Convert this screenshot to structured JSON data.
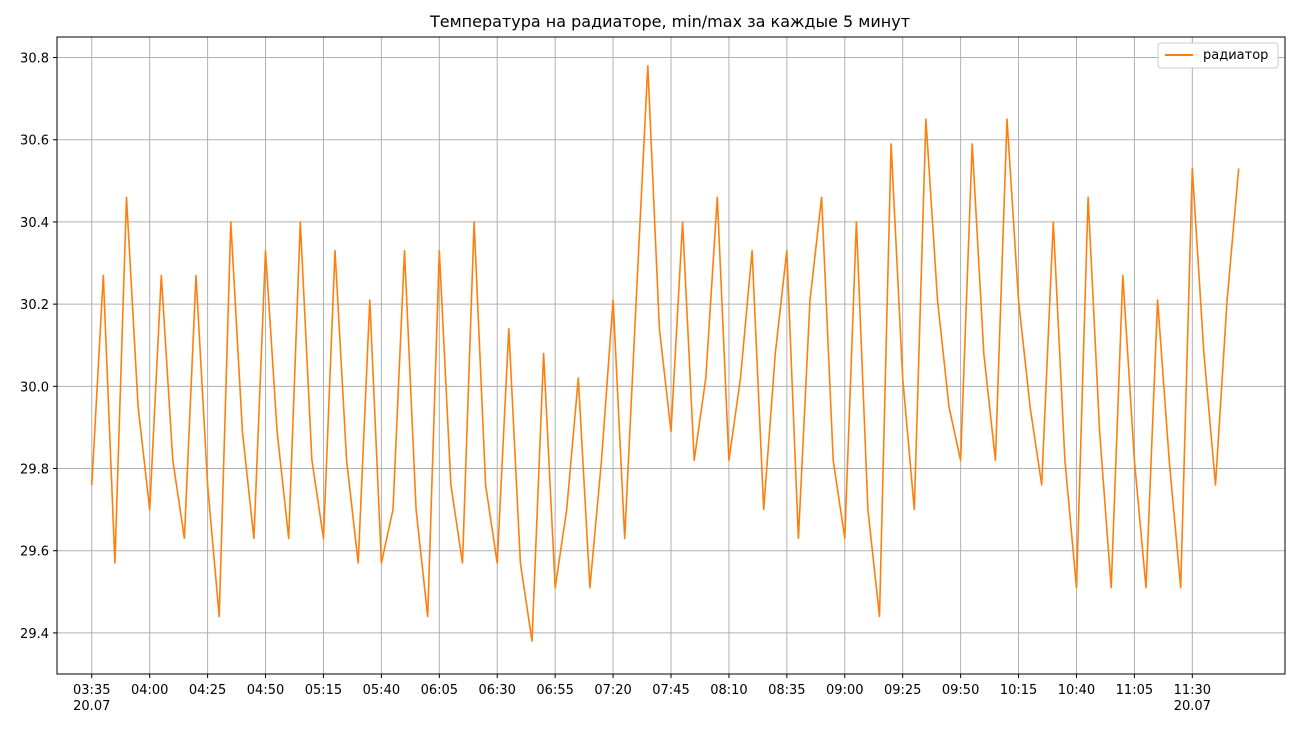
{
  "chart_data": {
    "type": "line",
    "title": "Температура на радиаторе, min/max за каждые 5 минут",
    "xlabel": "",
    "ylabel": "",
    "ylim": [
      29.3,
      30.85
    ],
    "grid": true,
    "legend_position": "top-right",
    "y_ticks": [
      29.4,
      29.6,
      29.8,
      30.0,
      30.2,
      30.4,
      30.6,
      30.8
    ],
    "y_tick_labels": [
      "29.4",
      "29.6",
      "29.8",
      "30.0",
      "30.2",
      "30.4",
      "30.6",
      "30.8"
    ],
    "x_ticks": [
      "03:35",
      "04:00",
      "04:25",
      "04:50",
      "05:15",
      "05:40",
      "06:05",
      "06:30",
      "06:55",
      "07:20",
      "07:45",
      "08:10",
      "08:35",
      "09:00",
      "09:25",
      "09:50",
      "10:15",
      "10:40",
      "11:05",
      "11:30"
    ],
    "x_tick_labels": [
      [
        "03:35",
        "20.07"
      ],
      [
        "04:00"
      ],
      [
        "04:25"
      ],
      [
        "04:50"
      ],
      [
        "05:15"
      ],
      [
        "05:40"
      ],
      [
        "06:05"
      ],
      [
        "06:30"
      ],
      [
        "06:55"
      ],
      [
        "07:20"
      ],
      [
        "07:45"
      ],
      [
        "08:10"
      ],
      [
        "08:35"
      ],
      [
        "09:00"
      ],
      [
        "09:25"
      ],
      [
        "09:50"
      ],
      [
        "10:15"
      ],
      [
        "10:40"
      ],
      [
        "11:05"
      ],
      [
        "11:30",
        "20.07"
      ]
    ],
    "x_range": [
      "03:20",
      "12:10"
    ],
    "series": [
      {
        "name": "радиатор",
        "color": "#ff7f0e",
        "x": [
          "03:35",
          "03:40",
          "03:45",
          "03:50",
          "03:55",
          "04:00",
          "04:05",
          "04:10",
          "04:15",
          "04:20",
          "04:25",
          "04:30",
          "04:35",
          "04:40",
          "04:45",
          "04:50",
          "04:55",
          "05:00",
          "05:05",
          "05:10",
          "05:15",
          "05:20",
          "05:25",
          "05:30",
          "05:35",
          "05:40",
          "05:45",
          "05:50",
          "05:55",
          "06:00",
          "06:05",
          "06:10",
          "06:15",
          "06:20",
          "06:25",
          "06:30",
          "06:35",
          "06:40",
          "06:45",
          "06:50",
          "06:55",
          "07:00",
          "07:05",
          "07:10",
          "07:15",
          "07:20",
          "07:25",
          "07:30",
          "07:35",
          "07:40",
          "07:45",
          "07:50",
          "07:55",
          "08:00",
          "08:05",
          "08:10",
          "08:15",
          "08:20",
          "08:25",
          "08:30",
          "08:35",
          "08:40",
          "08:45",
          "08:50",
          "08:55",
          "09:00",
          "09:05",
          "09:10",
          "09:15",
          "09:20",
          "09:25",
          "09:30",
          "09:35",
          "09:40",
          "09:45",
          "09:50",
          "09:55",
          "10:00",
          "10:05",
          "10:10",
          "10:15",
          "10:20",
          "10:25",
          "10:30",
          "10:35",
          "10:40",
          "10:45",
          "10:50",
          "10:55",
          "11:00",
          "11:05",
          "11:10",
          "11:15",
          "11:20",
          "11:25",
          "11:30",
          "11:35",
          "11:40",
          "11:45",
          "11:50"
        ],
        "values": [
          29.76,
          30.27,
          29.57,
          30.46,
          29.95,
          29.7,
          30.27,
          29.82,
          29.63,
          30.27,
          29.76,
          29.44,
          30.4,
          29.89,
          29.63,
          30.33,
          29.89,
          29.63,
          30.4,
          29.82,
          29.63,
          30.33,
          29.82,
          29.57,
          30.21,
          29.57,
          29.7,
          30.33,
          29.7,
          29.44,
          30.33,
          29.76,
          29.57,
          30.4,
          29.76,
          29.57,
          30.14,
          29.57,
          29.38,
          30.08,
          29.51,
          29.7,
          30.02,
          29.51,
          29.82,
          30.21,
          29.63,
          30.21,
          30.78,
          30.14,
          29.89,
          30.4,
          29.82,
          30.02,
          30.46,
          29.82,
          30.02,
          30.33,
          29.7,
          30.08,
          30.33,
          29.63,
          30.21,
          30.46,
          29.82,
          29.63,
          30.4,
          29.7,
          29.44,
          30.59,
          30.02,
          29.7,
          30.65,
          30.21,
          29.95,
          29.82,
          30.59,
          30.08,
          29.82,
          30.65,
          30.21,
          29.95,
          29.76,
          30.4,
          29.82,
          29.51,
          30.46,
          29.89,
          29.51,
          30.27,
          29.82,
          29.51,
          30.21,
          29.82,
          29.51,
          30.53,
          30.08,
          29.76,
          30.21,
          30.53
        ]
      }
    ]
  }
}
